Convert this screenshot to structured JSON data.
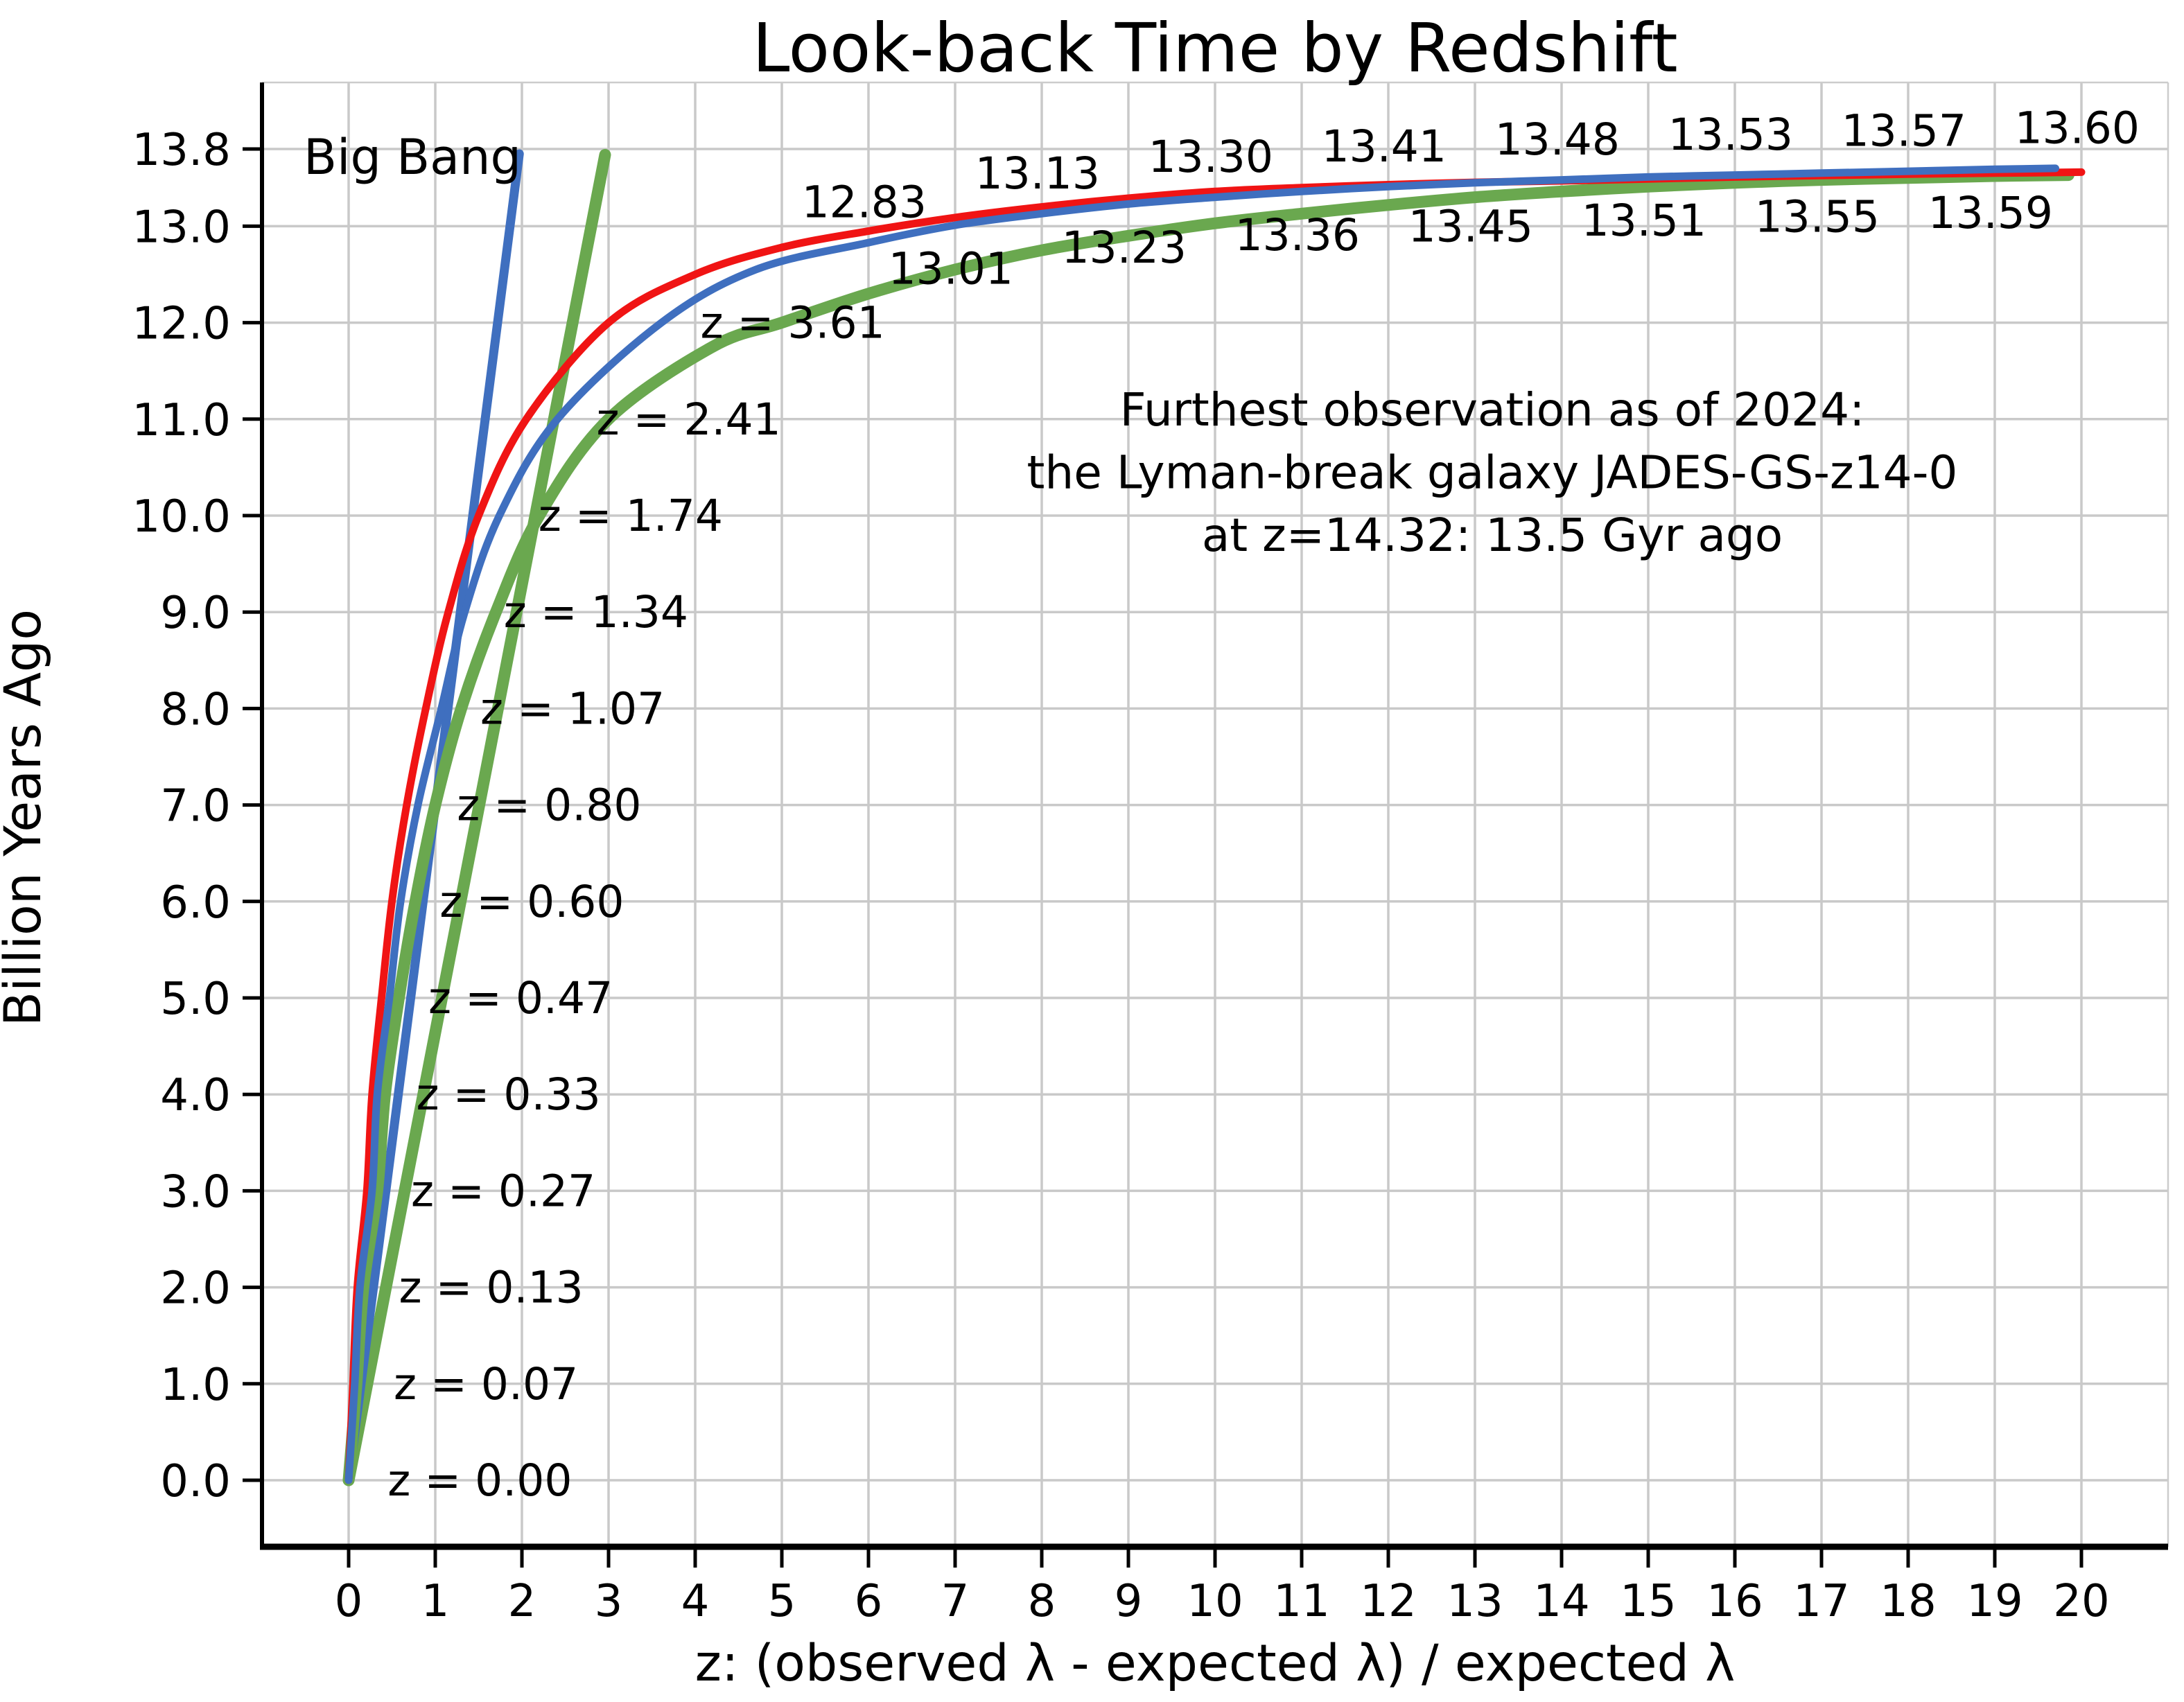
{
  "chart_data": {
    "type": "line",
    "title": "Look-back Time by Redshift",
    "xlabel": "z: (observed λ - expected λ) / expected λ",
    "ylabel": "Billion Years Ago",
    "xlim": [
      -1,
      21
    ],
    "ylim": [
      -0.69,
      14.49
    ],
    "grid": true,
    "grid_color": "#c9c9c9",
    "x_ticks": [
      0,
      1,
      2,
      3,
      4,
      5,
      6,
      7,
      8,
      9,
      10,
      11,
      12,
      13,
      14,
      15,
      16,
      17,
      18,
      19,
      20
    ],
    "y_ticks": [
      0.0,
      1.0,
      2.0,
      3.0,
      4.0,
      5.0,
      6.0,
      7.0,
      8.0,
      9.0,
      10.0,
      11.0,
      12.0,
      13.0,
      13.8
    ],
    "series": [
      {
        "name": "green-straight-line",
        "color": "#6aa84f",
        "width": 17,
        "smooth": false,
        "points": [
          [
            0,
            0
          ],
          [
            2.96,
            13.74
          ]
        ]
      },
      {
        "name": "blue-straight-line",
        "color": "#3f6fbf",
        "width": 13,
        "smooth": false,
        "points": [
          [
            0,
            0
          ],
          [
            1.97,
            13.75
          ]
        ]
      },
      {
        "name": "green-curve",
        "color": "#6aa84f",
        "width": 17,
        "smooth": true,
        "points": [
          [
            0,
            0
          ],
          [
            0.09,
            1
          ],
          [
            0.17,
            2
          ],
          [
            0.33,
            3
          ],
          [
            0.42,
            4
          ],
          [
            0.58,
            5
          ],
          [
            0.77,
            6
          ],
          [
            1.0,
            7
          ],
          [
            1.3,
            8
          ],
          [
            1.7,
            9
          ],
          [
            2.2,
            10
          ],
          [
            3.0,
            11
          ],
          [
            4.2,
            11.75
          ],
          [
            5,
            12.0
          ],
          [
            6,
            12.3
          ],
          [
            7,
            12.55
          ],
          [
            8,
            12.75
          ],
          [
            9,
            12.9
          ],
          [
            10,
            13.03
          ],
          [
            11,
            13.13
          ],
          [
            12,
            13.22
          ],
          [
            13,
            13.3
          ],
          [
            14,
            13.36
          ],
          [
            15,
            13.41
          ],
          [
            16,
            13.45
          ],
          [
            17,
            13.48
          ],
          [
            18,
            13.5
          ],
          [
            19,
            13.52
          ],
          [
            19.85,
            13.53
          ]
        ]
      },
      {
        "name": "red-curve",
        "color": "#f01414",
        "width": 11,
        "smooth": true,
        "points": [
          [
            0,
            0
          ],
          [
            0.05,
            1
          ],
          [
            0.1,
            2
          ],
          [
            0.21,
            3
          ],
          [
            0.27,
            4
          ],
          [
            0.38,
            5
          ],
          [
            0.5,
            6
          ],
          [
            0.67,
            7
          ],
          [
            0.89,
            8
          ],
          [
            1.15,
            9
          ],
          [
            1.5,
            10
          ],
          [
            2.05,
            11
          ],
          [
            3.0,
            12
          ],
          [
            4.0,
            12.5
          ],
          [
            5,
            12.78
          ],
          [
            6,
            12.95
          ],
          [
            7,
            13.09
          ],
          [
            8,
            13.2
          ],
          [
            9,
            13.29
          ],
          [
            10,
            13.36
          ],
          [
            11,
            13.4
          ],
          [
            12,
            13.43
          ],
          [
            13,
            13.455
          ],
          [
            14,
            13.47
          ],
          [
            15,
            13.49
          ],
          [
            16,
            13.51
          ],
          [
            17,
            13.525
          ],
          [
            18,
            13.54
          ],
          [
            19,
            13.55
          ],
          [
            20,
            13.56
          ]
        ]
      },
      {
        "name": "blue-curve",
        "color": "#3f6fbf",
        "width": 11,
        "smooth": true,
        "points": [
          [
            0,
            0
          ],
          [
            0.07,
            1
          ],
          [
            0.13,
            2
          ],
          [
            0.27,
            3
          ],
          [
            0.33,
            4
          ],
          [
            0.47,
            5
          ],
          [
            0.6,
            6
          ],
          [
            0.8,
            7
          ],
          [
            1.07,
            8
          ],
          [
            1.34,
            9
          ],
          [
            1.74,
            10
          ],
          [
            2.41,
            11
          ],
          [
            3.61,
            12
          ],
          [
            4.7,
            12.55
          ],
          [
            6,
            12.83
          ],
          [
            7,
            13.01
          ],
          [
            8,
            13.13
          ],
          [
            9,
            13.23
          ],
          [
            10,
            13.3
          ],
          [
            11,
            13.36
          ],
          [
            12,
            13.41
          ],
          [
            13,
            13.45
          ],
          [
            14,
            13.48
          ],
          [
            15,
            13.51
          ],
          [
            16,
            13.53
          ],
          [
            17,
            13.55
          ],
          [
            18,
            13.57
          ],
          [
            19,
            13.59
          ],
          [
            19.7,
            13.6
          ]
        ]
      }
    ],
    "value_labels_above": [
      {
        "z": 6,
        "t": 13.25,
        "text": "12.83"
      },
      {
        "z": 8,
        "t": 13.55,
        "text": "13.13"
      },
      {
        "z": 10,
        "t": 13.72,
        "text": "13.30"
      },
      {
        "z": 12,
        "t": 13.83,
        "text": "13.41"
      },
      {
        "z": 14,
        "t": 13.9,
        "text": "13.48"
      },
      {
        "z": 16,
        "t": 13.95,
        "text": "13.53"
      },
      {
        "z": 18,
        "t": 13.99,
        "text": "13.57"
      },
      {
        "z": 20,
        "t": 14.02,
        "text": "13.60"
      }
    ],
    "value_labels_below": [
      {
        "z": 7,
        "t": 12.56,
        "text": "13.01"
      },
      {
        "z": 9,
        "t": 12.78,
        "text": "13.23"
      },
      {
        "z": 11,
        "t": 12.91,
        "text": "13.36"
      },
      {
        "z": 13,
        "t": 13.0,
        "text": "13.45"
      },
      {
        "z": 15,
        "t": 13.06,
        "text": "13.51"
      },
      {
        "z": 17,
        "t": 13.1,
        "text": "13.55"
      },
      {
        "z": 19,
        "t": 13.14,
        "text": "13.59"
      }
    ],
    "redshift_labels": [
      {
        "x": 0.45,
        "t": 0,
        "text": "z = 0.00"
      },
      {
        "x": 0.52,
        "t": 1,
        "text": "z = 0.07"
      },
      {
        "x": 0.58,
        "t": 2,
        "text": "z = 0.13"
      },
      {
        "x": 0.72,
        "t": 3,
        "text": "z = 0.27"
      },
      {
        "x": 0.78,
        "t": 4,
        "text": "z = 0.33"
      },
      {
        "x": 0.92,
        "t": 5,
        "text": "z = 0.47"
      },
      {
        "x": 1.05,
        "t": 6,
        "text": "z = 0.60"
      },
      {
        "x": 1.25,
        "t": 7,
        "text": "z = 0.80"
      },
      {
        "x": 1.52,
        "t": 8,
        "text": "z = 1.07"
      },
      {
        "x": 1.79,
        "t": 9,
        "text": "z = 1.34"
      },
      {
        "x": 2.19,
        "t": 10,
        "text": "z = 1.74"
      },
      {
        "x": 2.86,
        "t": 11,
        "text": "z = 2.41"
      },
      {
        "x": 4.06,
        "t": 12,
        "text": "z = 3.61"
      }
    ],
    "annotations": {
      "big_bang": {
        "text": "Big Bang",
        "x": -0.52,
        "t": 13.72
      },
      "furthest": {
        "x": 13.2,
        "lines": [
          {
            "t": 11.1,
            "text": "Furthest observation as of 2024:"
          },
          {
            "t": 10.45,
            "text": "the Lyman-break galaxy JADES-GS-z14-0"
          },
          {
            "t": 9.8,
            "text": "at z=14.32: 13.5 Gyr ago"
          }
        ]
      }
    }
  }
}
